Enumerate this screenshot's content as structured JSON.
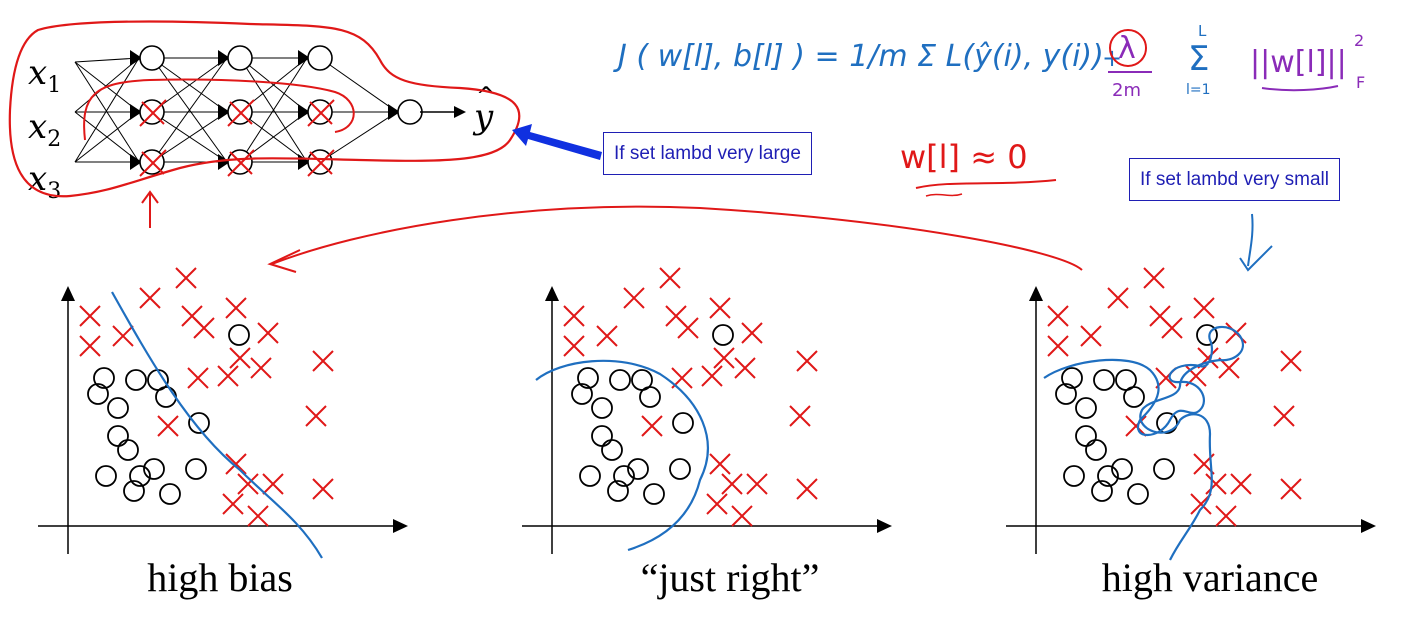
{
  "network": {
    "inputs": [
      "x",
      "x",
      "x"
    ],
    "input_subscripts": [
      "1",
      "2",
      "3"
    ],
    "output": "y",
    "output_hat": "^"
  },
  "formula": {
    "cost": "J ( w[l], b[l] ) = 1/m Σ L(ŷ(i), y(i))",
    "reg_lambda": "λ",
    "reg_denom": "2m",
    "reg_sum": "Σ",
    "reg_sum_bottom": "l=1",
    "reg_sum_top": "L",
    "reg_norm": "||w[l]||",
    "reg_norm_sup": "2",
    "reg_norm_sub": "F"
  },
  "annotations": {
    "w_approx": "w[l] ≈ 0"
  },
  "callouts": {
    "large": "If set lambd very large",
    "small": "If set lambd very small"
  },
  "plots": [
    {
      "caption": "high bias"
    },
    {
      "caption": "“just right”"
    },
    {
      "caption": "high variance"
    }
  ],
  "colors": {
    "red": "#e01818",
    "blue": "#1f6fc0",
    "callout_blue": "#1f1fb4",
    "arrow_blue": "#1030e0",
    "purple": "#8a2bb8"
  }
}
